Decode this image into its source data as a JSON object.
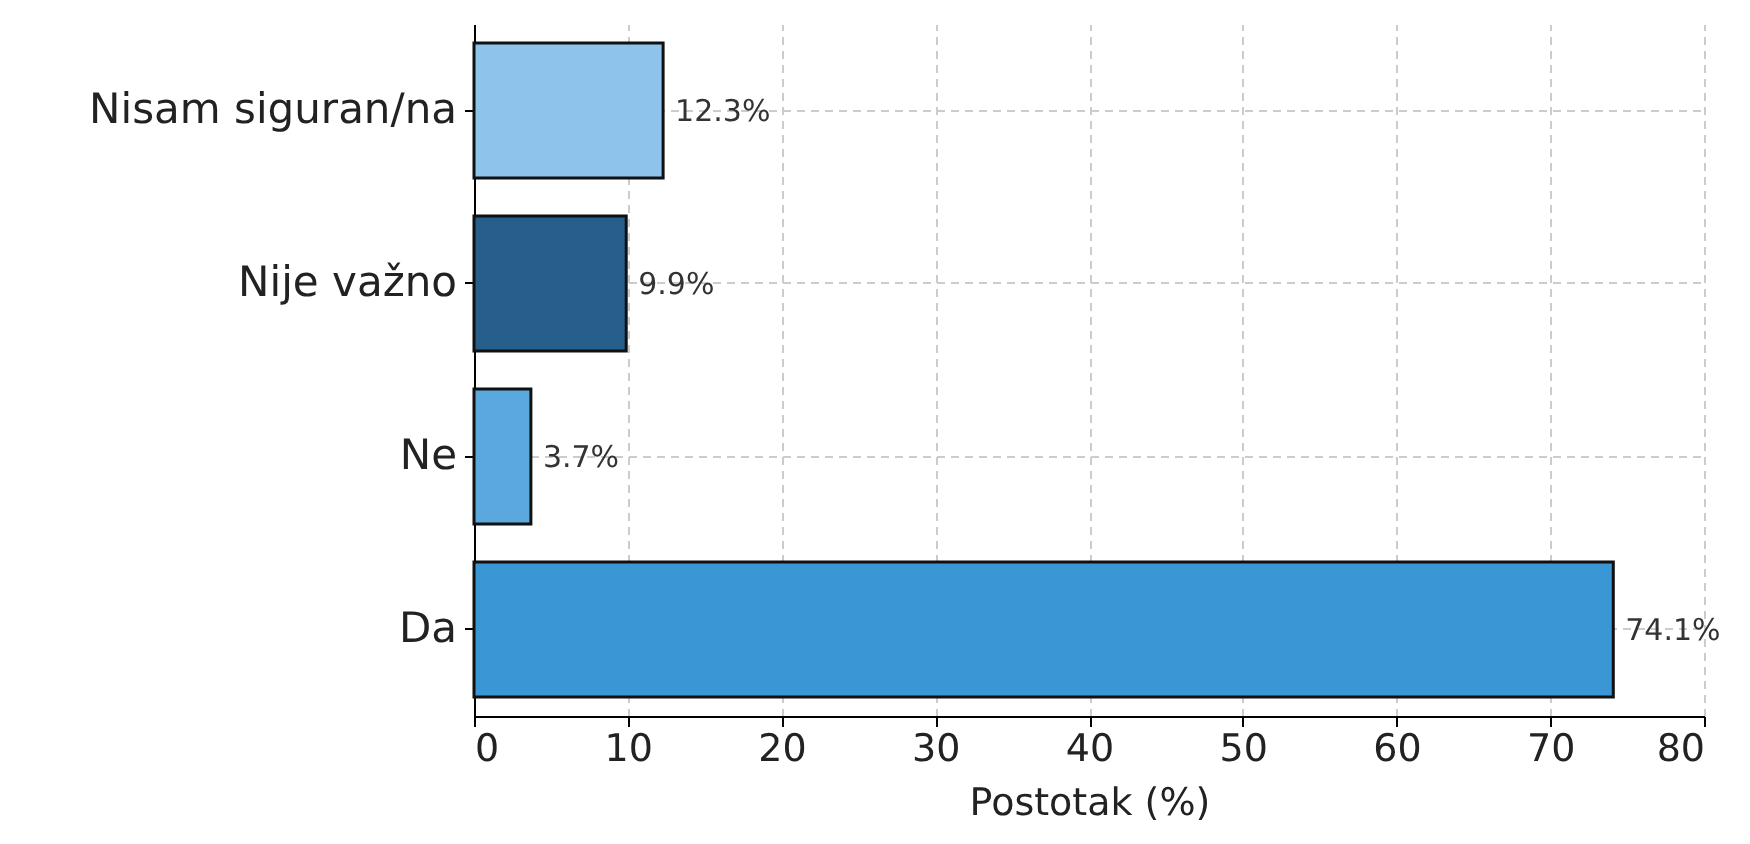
{
  "chart_data": {
    "type": "bar",
    "orientation": "horizontal",
    "xlabel": "Postotak (%)",
    "categories": [
      "Nisam siguran/na",
      "Nije važno",
      "Ne",
      "Da"
    ],
    "values": [
      12.3,
      9.9,
      3.7,
      74.1
    ],
    "colors": [
      "#8ec4ec",
      "#275f8c",
      "#5ba8de",
      "#3a96d4"
    ],
    "value_labels": [
      "12.3%",
      "9.9%",
      "3.7%",
      "74.1%"
    ],
    "xlim": [
      0,
      80
    ],
    "xticks": [
      0,
      10,
      20,
      30,
      40,
      50,
      60,
      70,
      80
    ],
    "grid": true
  }
}
